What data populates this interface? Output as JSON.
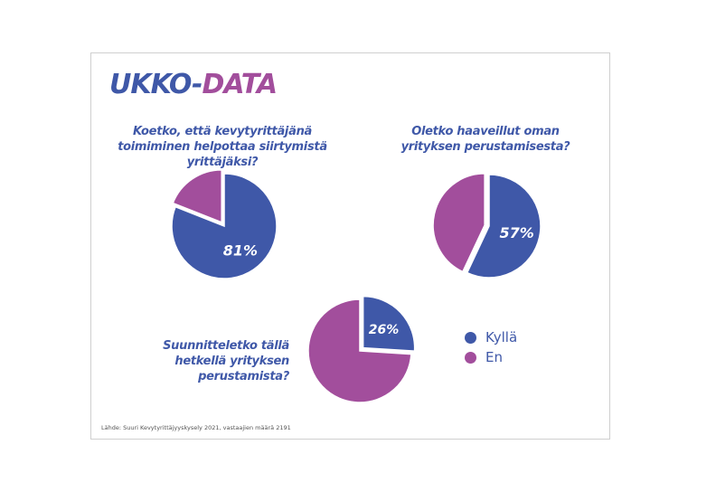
{
  "logo": {
    "part1": "UKKO-",
    "part2": "DATA"
  },
  "colors": {
    "yes": "#3f58a8",
    "no": "#a24e9c"
  },
  "chart_data": [
    {
      "type": "pie",
      "title": "Koetko, että kevytyrittäjänä toimiminen helpottaa siirtymistä yrittäjäksi?",
      "labels": [
        "Kyllä",
        "En"
      ],
      "values": [
        81,
        19
      ],
      "data_label": "81%"
    },
    {
      "type": "pie",
      "title": "Oletko haaveillut oman yrityksen perustamisesta?",
      "labels": [
        "Kyllä",
        "En"
      ],
      "values": [
        57,
        43
      ],
      "data_label": "57%"
    },
    {
      "type": "pie",
      "title": "Suunnitteletko tällä hetkellä yrityksen perustamista?",
      "labels": [
        "Kyllä",
        "En"
      ],
      "values": [
        26,
        74
      ],
      "data_label": "26%"
    }
  ],
  "legend": [
    {
      "label": "Kyllä"
    },
    {
      "label": "En"
    }
  ],
  "source": "Lähde: Suuri Kevytyrittäjyyskysely 2021, vastaajien määrä 2191"
}
